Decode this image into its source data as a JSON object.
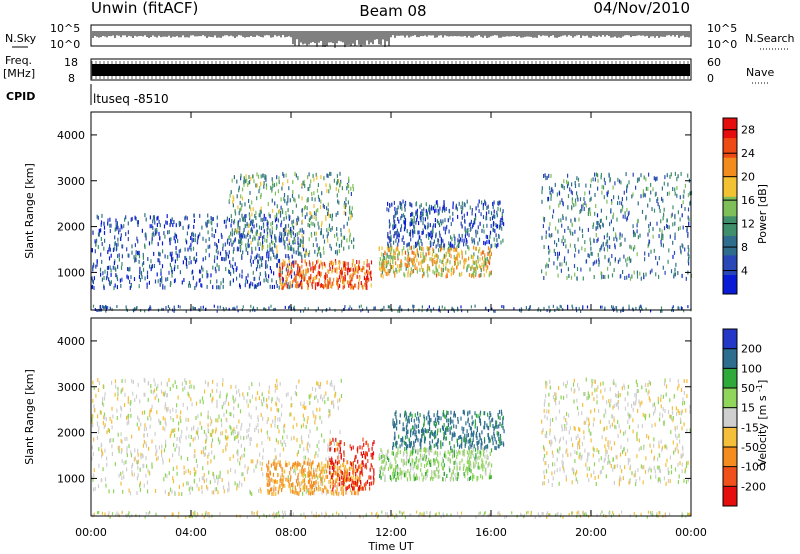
{
  "header": {
    "station": "Unwin (fitACF)",
    "beam": "Beam 08",
    "date": "04/Nov/2010"
  },
  "strips": {
    "nsky_label": "N.Sky",
    "nsky_tick_top": "10^5",
    "nsky_tick_bottom": "10^0",
    "nsearch_label": "N.Search",
    "nsearch_tick_top": "10^5",
    "nsearch_tick_bottom": "10^0",
    "freq_label_1": "Freq.",
    "freq_label_2": "[MHz]",
    "freq_tick_top": "18",
    "freq_tick_bottom": "8",
    "nave_label": "Nave",
    "nave_tick_top": "60",
    "nave_tick_bottom": "0",
    "cpid_label": "CPID",
    "cpid_value": "ltuseq -8510"
  },
  "colors": {
    "power_scale": [
      "#0a1bd6",
      "#2a47b8",
      "#2e6e8c",
      "#3f8f6a",
      "#7fbf5a",
      "#f2c232",
      "#f28c1e",
      "#ee4a14",
      "#e60d0d"
    ],
    "velocity_scale": [
      "#e60d0d",
      "#f0501a",
      "#f58c1f",
      "#f5bf3c",
      "#cfcfcf",
      "#8fd65a",
      "#2fa93a",
      "#2d6e8e",
      "#2438c8"
    ]
  },
  "chart_data": [
    {
      "type": "heatmap",
      "name": "power",
      "xlabel": "Time UT",
      "ylabel": "Slant Range [km]",
      "xlim": [
        0,
        24
      ],
      "ylim": [
        180,
        4500
      ],
      "x_ticks": [
        "00:00",
        "04:00",
        "08:00",
        "12:00",
        "16:00",
        "20:00",
        "00:00"
      ],
      "y_ticks": [
        1000,
        2000,
        3000,
        4000
      ],
      "colorbar_label": "Power [dB]",
      "colorbar_ticks": [
        4,
        8,
        12,
        16,
        20,
        24,
        28
      ],
      "colorbar_range": [
        0,
        30
      ],
      "echo_regions": [
        {
          "t_start": 0.0,
          "t_end": 8.5,
          "range_min": 700,
          "range_max": 2300,
          "typical_value": 6
        },
        {
          "t_start": 5.5,
          "t_end": 10.5,
          "range_min": 1400,
          "range_max": 3200,
          "typical_value": 12
        },
        {
          "t_start": 7.5,
          "t_end": 11.2,
          "range_min": 700,
          "range_max": 1300,
          "typical_value": 24
        },
        {
          "t_start": 11.5,
          "t_end": 16.0,
          "range_min": 950,
          "range_max": 1600,
          "typical_value": 18
        },
        {
          "t_start": 11.8,
          "t_end": 16.5,
          "range_min": 1600,
          "range_max": 2600,
          "typical_value": 6
        },
        {
          "t_start": 18.0,
          "t_end": 24.0,
          "range_min": 900,
          "range_max": 3200,
          "typical_value": 9
        }
      ]
    },
    {
      "type": "heatmap",
      "name": "velocity",
      "xlabel": "Time UT",
      "ylabel": "Slant Range [km]",
      "xlim": [
        0,
        24
      ],
      "ylim": [
        180,
        4500
      ],
      "x_ticks": [
        "00:00",
        "04:00",
        "08:00",
        "12:00",
        "16:00",
        "20:00",
        "00:00"
      ],
      "y_ticks": [
        1000,
        2000,
        3000,
        4000
      ],
      "colorbar_label": "Velocity [m s^-1]",
      "colorbar_ticks": [
        -200,
        -100,
        -50,
        -15,
        15,
        50,
        100,
        200
      ],
      "colorbar_range": [
        -250,
        250
      ],
      "echo_regions": [
        {
          "t_start": 0.0,
          "t_end": 10.0,
          "range_min": 700,
          "range_max": 3200,
          "typical_value": 0
        },
        {
          "t_start": 7.0,
          "t_end": 10.8,
          "range_min": 700,
          "range_max": 1400,
          "typical_value": -60
        },
        {
          "t_start": 9.5,
          "t_end": 11.3,
          "range_min": 800,
          "range_max": 1900,
          "typical_value": -210
        },
        {
          "t_start": 11.5,
          "t_end": 16.0,
          "range_min": 1000,
          "range_max": 1700,
          "typical_value": 30
        },
        {
          "t_start": 12.0,
          "t_end": 16.5,
          "range_min": 1700,
          "range_max": 2500,
          "typical_value": 120
        },
        {
          "t_start": 18.0,
          "t_end": 24.0,
          "range_min": 900,
          "range_max": 3200,
          "typical_value": 0
        }
      ]
    }
  ]
}
